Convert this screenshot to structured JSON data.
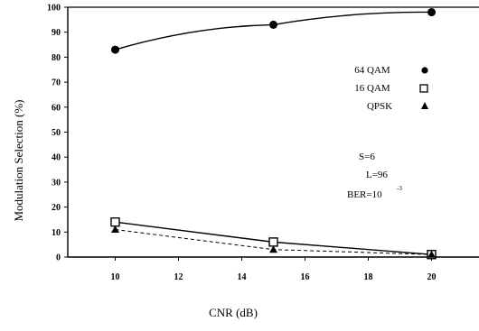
{
  "chart_data": {
    "type": "line",
    "xlabel": "CNR (dB)",
    "ylabel": "Modulation Selection (%)",
    "xlim": [
      8.5,
      21.5
    ],
    "ylim": [
      0,
      100
    ],
    "xticks": [
      10,
      12,
      14,
      16,
      18,
      20
    ],
    "yticks": [
      0,
      10,
      20,
      30,
      40,
      50,
      60,
      70,
      80,
      90,
      100
    ],
    "x": [
      10,
      15,
      20
    ],
    "series": [
      {
        "name": "64 QAM",
        "marker": "filled-circle",
        "line": "solid",
        "values": [
          83,
          93,
          98
        ]
      },
      {
        "name": "16 QAM",
        "marker": "open-square",
        "line": "solid",
        "values": [
          14,
          6,
          1
        ]
      },
      {
        "name": "QPSK",
        "marker": "filled-triangle",
        "line": "dashed",
        "values": [
          11,
          3,
          1
        ]
      }
    ],
    "annotations": [
      "S=6",
      "L=96",
      "BER=10",
      "-3"
    ],
    "legend_position": "right"
  }
}
